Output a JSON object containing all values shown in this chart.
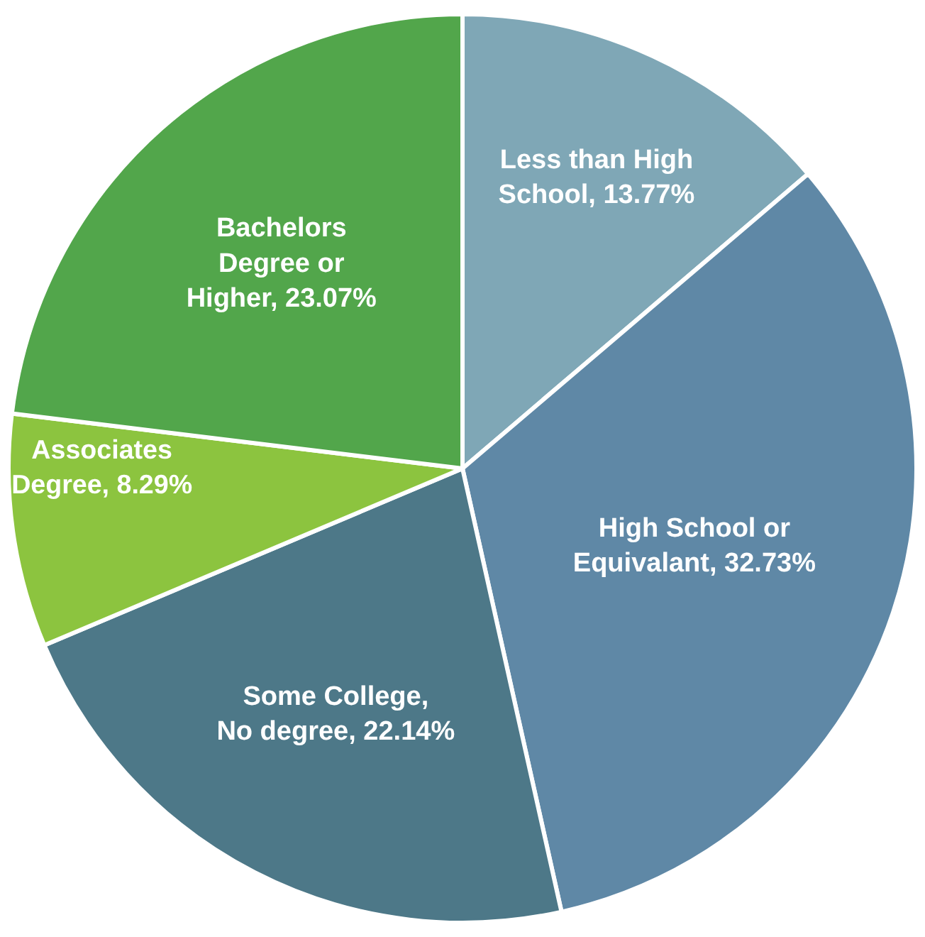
{
  "chart_data": {
    "type": "pie",
    "categories": [
      "Less than High School",
      "High School or Equivalant",
      "Some College, No degree",
      "Associates Degree",
      "Bachelors Degree or Higher"
    ],
    "values": [
      13.77,
      32.73,
      22.14,
      8.29,
      23.07
    ],
    "value_labels": [
      "13.77%",
      "32.73%",
      "22.14%",
      "8.29%",
      "23.07%"
    ],
    "colors": [
      "#7fa7b6",
      "#5f88a6",
      "#4d7888",
      "#8cc43f",
      "#52a64b"
    ],
    "legend": false
  }
}
